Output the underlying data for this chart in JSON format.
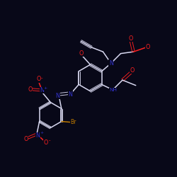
{
  "background_color": "#080818",
  "bond_color": "#d8d8f0",
  "atom_colors": {
    "O": "#ff2020",
    "N": "#3333cc",
    "Br": "#bb7700",
    "C": "#d8d8f0"
  }
}
